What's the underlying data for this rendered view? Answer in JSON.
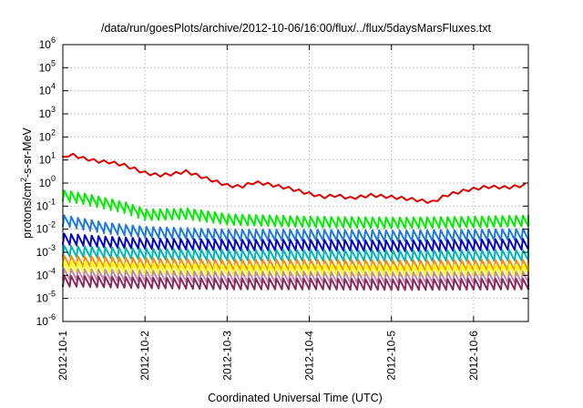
{
  "chart_data": {
    "type": "line",
    "title": "/data/run/goesPlots/archive/2012-10-06/16:00/flux/../flux/5daysMarsFluxes.txt",
    "xlabel": "Coordinated Universal Time (UTC)",
    "ylabel": "protons/cm²-s-sr-MeV",
    "ylabel_parts": {
      "pre": "protons/cm",
      "sup": "2",
      "post": "-s-sr-MeV"
    },
    "x_scale": "date (days)",
    "xlim": [
      "2012-10-01",
      "2012-10-06 16:00"
    ],
    "x_ticks": [
      "2012-10-1",
      "2012-10-2",
      "2012-10-3",
      "2012-10-4",
      "2012-10-5",
      "2012-10-6"
    ],
    "y_scale": "log",
    "ylim": [
      1e-06,
      1000000.0
    ],
    "y_ticks": [
      {
        "base": "10",
        "exp": "-6",
        "value": 1e-06
      },
      {
        "base": "10",
        "exp": "-5",
        "value": 1e-05
      },
      {
        "base": "10",
        "exp": "-4",
        "value": 0.0001
      },
      {
        "base": "10",
        "exp": "-3",
        "value": 0.001
      },
      {
        "base": "10",
        "exp": "-2",
        "value": 0.01
      },
      {
        "base": "10",
        "exp": "-1",
        "value": 0.1
      },
      {
        "base": "10",
        "exp": "0",
        "value": 1
      },
      {
        "base": "10",
        "exp": "1",
        "value": 10
      },
      {
        "base": "10",
        "exp": "2",
        "value": 100
      },
      {
        "base": "10",
        "exp": "3",
        "value": 1000
      },
      {
        "base": "10",
        "exp": "4",
        "value": 10000
      },
      {
        "base": "10",
        "exp": "5",
        "value": 100000
      },
      {
        "base": "10",
        "exp": "6",
        "value": 1000000
      }
    ],
    "grid": true,
    "legend": "none",
    "series": [
      {
        "color": "#e00000",
        "style": "smooth",
        "points": [
          [
            "2012-10-01 00:00",
            12
          ],
          [
            "2012-10-01 02:00",
            18
          ],
          [
            "2012-10-01 06:00",
            12
          ],
          [
            "2012-10-01 10:00",
            9
          ],
          [
            "2012-10-01 14:00",
            8
          ],
          [
            "2012-10-01 18:00",
            6
          ],
          [
            "2012-10-02 00:00",
            2.8
          ],
          [
            "2012-10-02 04:00",
            2.2
          ],
          [
            "2012-10-02 08:00",
            2.5
          ],
          [
            "2012-10-02 12:00",
            3.2
          ],
          [
            "2012-10-02 18:00",
            1.6
          ],
          [
            "2012-10-03 00:00",
            0.8
          ],
          [
            "2012-10-03 04:00",
            0.7
          ],
          [
            "2012-10-03 08:00",
            1.1
          ],
          [
            "2012-10-03 12:00",
            0.9
          ],
          [
            "2012-10-03 18:00",
            0.6
          ],
          [
            "2012-10-04 00:00",
            0.35
          ],
          [
            "2012-10-04 04:00",
            0.25
          ],
          [
            "2012-10-04 08:00",
            0.3
          ],
          [
            "2012-10-04 12:00",
            0.22
          ],
          [
            "2012-10-04 18:00",
            0.3
          ],
          [
            "2012-10-05 00:00",
            0.25
          ],
          [
            "2012-10-05 06:00",
            0.2
          ],
          [
            "2012-10-05 12:00",
            0.15
          ],
          [
            "2012-10-05 16:00",
            0.3
          ],
          [
            "2012-10-05 22:00",
            0.5
          ],
          [
            "2012-10-06 04:00",
            0.7
          ],
          [
            "2012-10-06 10:00",
            0.65
          ],
          [
            "2012-10-06 16:00",
            0.85
          ]
        ]
      },
      {
        "color": "#00ee00",
        "style": "sawtooth",
        "points": [
          [
            "2012-10-01 00:00",
            0.3
          ],
          [
            "2012-10-01 06:00",
            0.22
          ],
          [
            "2012-10-01 18:00",
            0.09
          ],
          [
            "2012-10-02 00:00",
            0.045
          ],
          [
            "2012-10-02 12:00",
            0.05
          ],
          [
            "2012-10-03 00:00",
            0.028
          ],
          [
            "2012-10-04 00:00",
            0.022
          ],
          [
            "2012-10-05 00:00",
            0.02
          ],
          [
            "2012-10-06 00:00",
            0.022
          ],
          [
            "2012-10-06 16:00",
            0.025
          ]
        ]
      },
      {
        "color": "#1e7bdc",
        "style": "sawtooth",
        "points": [
          [
            "2012-10-01 00:00",
            0.025
          ],
          [
            "2012-10-01 12:00",
            0.012
          ],
          [
            "2012-10-02 00:00",
            0.008
          ],
          [
            "2012-10-03 00:00",
            0.006
          ],
          [
            "2012-10-04 00:00",
            0.006
          ],
          [
            "2012-10-05 00:00",
            0.0055
          ],
          [
            "2012-10-06 00:00",
            0.006
          ],
          [
            "2012-10-06 16:00",
            0.0065
          ]
        ]
      },
      {
        "color": "#0000c8",
        "style": "sawtooth",
        "points": [
          [
            "2012-10-01 00:00",
            0.004
          ],
          [
            "2012-10-01 12:00",
            0.003
          ],
          [
            "2012-10-02 00:00",
            0.0025
          ],
          [
            "2012-10-03 00:00",
            0.0022
          ],
          [
            "2012-10-04 00:00",
            0.0022
          ],
          [
            "2012-10-05 00:00",
            0.002
          ],
          [
            "2012-10-06 00:00",
            0.0022
          ],
          [
            "2012-10-06 16:00",
            0.0024
          ]
        ]
      },
      {
        "color": "#00b8b8",
        "style": "sawtooth",
        "points": [
          [
            "2012-10-01 00:00",
            0.0012
          ],
          [
            "2012-10-02 00:00",
            0.0009
          ],
          [
            "2012-10-03 00:00",
            0.0008
          ],
          [
            "2012-10-04 00:00",
            0.0008
          ],
          [
            "2012-10-05 00:00",
            0.00075
          ],
          [
            "2012-10-06 16:00",
            0.0008
          ]
        ]
      },
      {
        "color": "#ff8c00",
        "style": "sawtooth",
        "points": [
          [
            "2012-10-01 00:00",
            0.00045
          ],
          [
            "2012-10-02 00:00",
            0.00035
          ],
          [
            "2012-10-03 00:00",
            0.0003
          ],
          [
            "2012-10-04 00:00",
            0.0003
          ],
          [
            "2012-10-05 00:00",
            0.00028
          ],
          [
            "2012-10-06 16:00",
            0.0003
          ]
        ]
      },
      {
        "color": "#ffff00",
        "style": "sawtooth",
        "points": [
          [
            "2012-10-01 00:00",
            0.00025
          ],
          [
            "2012-10-02 00:00",
            0.0002
          ],
          [
            "2012-10-03 00:00",
            0.00018
          ],
          [
            "2012-10-04 00:00",
            0.00018
          ],
          [
            "2012-10-05 00:00",
            0.00017
          ],
          [
            "2012-10-06 16:00",
            0.00018
          ]
        ]
      },
      {
        "color": "#c08aa8",
        "style": "sawtooth",
        "points": [
          [
            "2012-10-01 00:00",
            0.00012
          ],
          [
            "2012-10-02 00:00",
            0.0001
          ],
          [
            "2012-10-03 00:00",
            9e-05
          ],
          [
            "2012-10-04 00:00",
            9e-05
          ],
          [
            "2012-10-05 00:00",
            8.5e-05
          ],
          [
            "2012-10-06 16:00",
            9e-05
          ]
        ]
      },
      {
        "color": "#8b2a5a",
        "style": "sawtooth",
        "points": [
          [
            "2012-10-01 00:00",
            6e-05
          ],
          [
            "2012-10-02 00:00",
            5e-05
          ],
          [
            "2012-10-03 00:00",
            4.5e-05
          ],
          [
            "2012-10-04 00:00",
            4.5e-05
          ],
          [
            "2012-10-05 00:00",
            4.2e-05
          ],
          [
            "2012-10-06 16:00",
            4.5e-05
          ]
        ]
      }
    ]
  }
}
